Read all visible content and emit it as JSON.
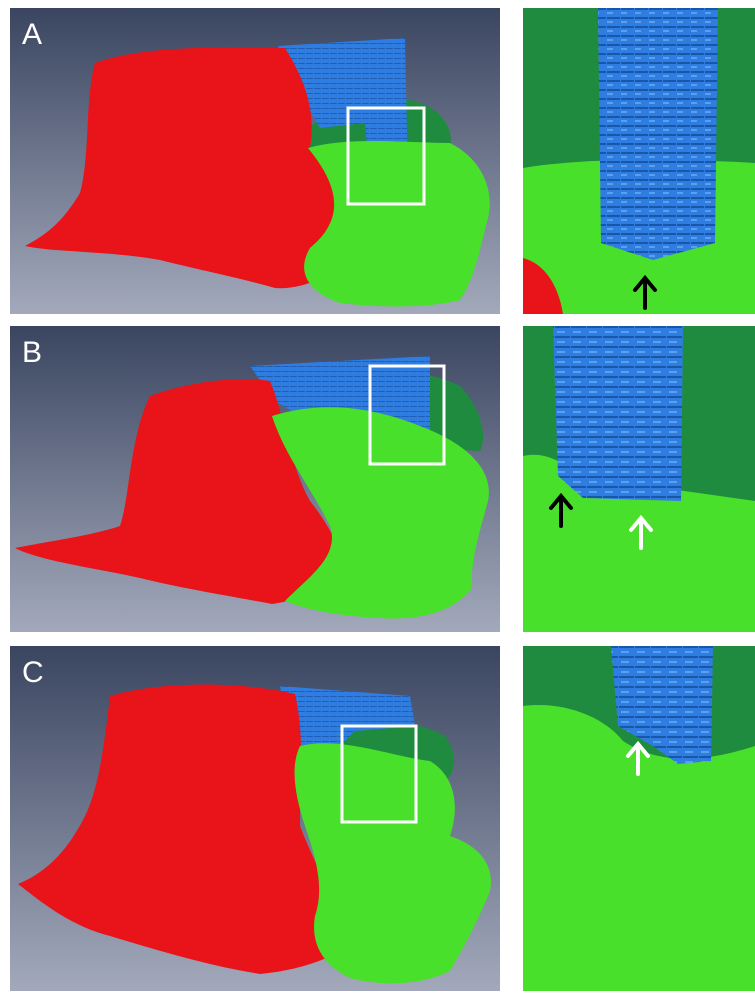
{
  "figure": {
    "panels": [
      {
        "label": "A",
        "zoom_arrows": [
          "black"
        ]
      },
      {
        "label": "B",
        "zoom_arrows": [
          "black",
          "white"
        ]
      },
      {
        "label": "C",
        "zoom_arrows": [
          "white"
        ]
      }
    ]
  },
  "colors": {
    "background_top": "#3a4560",
    "background_bottom": "#a3a9bb",
    "red_region": "#e8141a",
    "light_green_region": "#49e02b",
    "dark_green_region": "#1f8b3f",
    "blue_region": "#2f7de1",
    "selection_box": "#ffffff",
    "arrow_black": "#000000",
    "arrow_white": "#ffffff"
  }
}
